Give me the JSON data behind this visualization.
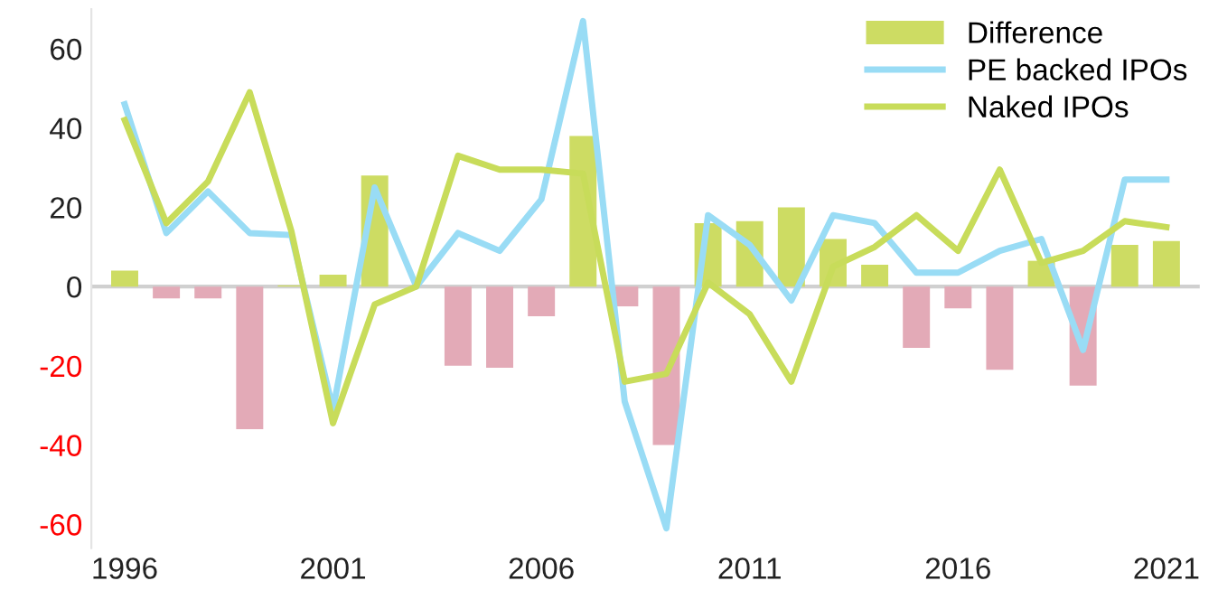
{
  "chart_data": {
    "type": "line",
    "x": [
      1996,
      1997,
      1998,
      1999,
      2000,
      2001,
      2002,
      2003,
      2004,
      2005,
      2006,
      2007,
      2008,
      2009,
      2010,
      2011,
      2012,
      2013,
      2014,
      2015,
      2016,
      2017,
      2018,
      2019,
      2020,
      2021
    ],
    "series": [
      {
        "name": "Difference",
        "type": "bar",
        "color": "#cddc63",
        "values": [
          4,
          -3,
          -3,
          -36,
          0.3,
          3,
          28,
          0,
          -20,
          -20.5,
          -7.5,
          38,
          -5,
          -40,
          16,
          16.5,
          20,
          12,
          5.5,
          -15.5,
          -5.5,
          -21,
          6.5,
          -25,
          10.5,
          11.5
        ],
        "colors": [
          "#cddc63",
          "#e3aab7",
          "#e3aab7",
          "#e3aab7",
          "#cddc63",
          "#cddc63",
          "#cddc63",
          "#cddc63",
          "#e3aab7",
          "#e3aab7",
          "#e3aab7",
          "#cddc63",
          "#e3aab7",
          "#e3aab7",
          "#cddc63",
          "#cddc63",
          "#cddc63",
          "#cddc63",
          "#cddc63",
          "#e3aab7",
          "#e3aab7",
          "#e3aab7",
          "#cddc63",
          "#e3aab7",
          "#cddc63",
          "#cddc63"
        ]
      },
      {
        "name": "PE backed IPOs",
        "color": "#99dcf5",
        "values": [
          46,
          13.5,
          24,
          13.5,
          13,
          -31,
          25,
          0,
          13.5,
          9,
          22,
          67,
          -29,
          -61,
          18,
          10.5,
          -3.5,
          18,
          16,
          3.5,
          3.5,
          9,
          12,
          -16,
          27,
          27
        ]
      },
      {
        "name": "Naked IPOs",
        "color": "#c8dc5a",
        "values": [
          42,
          16,
          26.5,
          49,
          14,
          -34.5,
          -4.5,
          0,
          33,
          29.5,
          29.5,
          28.5,
          -24,
          -22,
          1,
          -7,
          -24,
          5,
          10,
          18,
          9,
          29.5,
          6,
          9,
          16.5,
          15
        ]
      }
    ],
    "xlim": [
      1995.2,
      2021.8
    ],
    "xticks": [
      1996,
      2001,
      2006,
      2011,
      2016,
      2021
    ],
    "ref_lines": [
      {
        "axis": "y",
        "value": 0,
        "color": "#d0d0d0"
      }
    ],
    "ylim": [
      -66,
      70
    ],
    "yticks": [
      -60,
      -40,
      -20,
      0,
      20,
      40,
      60
    ],
    "grid": false,
    "legend": "top right",
    "marker": "none",
    "line_style": "solid"
  }
}
